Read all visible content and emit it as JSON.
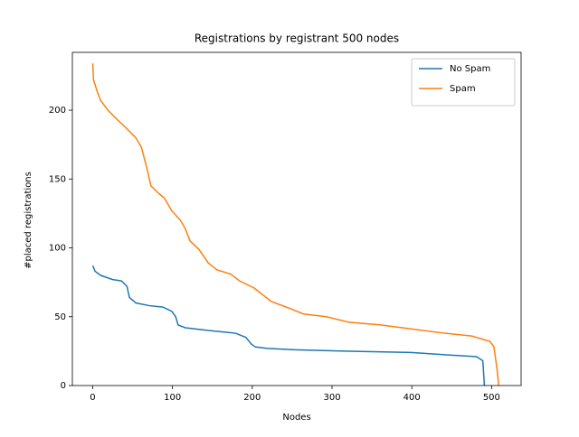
{
  "chart_data": {
    "type": "line",
    "title": "Registrations by registrant 500 nodes",
    "xlabel": "Nodes",
    "ylabel": "#placed registrations",
    "xlim": [
      -25.5,
      537
    ],
    "ylim": [
      0,
      242
    ],
    "xticks": [
      0,
      100,
      200,
      300,
      400,
      500
    ],
    "yticks": [
      0,
      50,
      100,
      150,
      200
    ],
    "legend": "upper right",
    "series": [
      {
        "name": "No Spam",
        "color": "#1f77b4",
        "x": [
          0,
          3,
          10,
          25,
          36,
          43,
          46,
          54,
          71,
          88,
          99,
          104,
          107,
          116,
          145,
          179,
          192,
          199,
          204,
          219,
          253,
          316,
          399,
          452,
          481,
          489,
          491
        ],
        "values": [
          87,
          83,
          80,
          77,
          76,
          72,
          64,
          60,
          58,
          57,
          54,
          50,
          44,
          42,
          40,
          38,
          35,
          30,
          28,
          27,
          26,
          25,
          24,
          22,
          21,
          18,
          0
        ]
      },
      {
        "name": "Spam",
        "color": "#ff7f0e",
        "x": [
          0,
          1,
          6,
          10,
          19,
          31,
          42,
          54,
          61,
          67,
          73,
          82,
          90,
          99,
          110,
          116,
          122,
          133,
          145,
          156,
          173,
          184,
          202,
          224,
          247,
          264,
          293,
          321,
          361,
          401,
          441,
          475,
          498,
          503,
          507,
          509
        ],
        "values": [
          234,
          222,
          213,
          207,
          200,
          193,
          187,
          180,
          173,
          160,
          145,
          140,
          136,
          127,
          120,
          114,
          105,
          99,
          89,
          84,
          81,
          76,
          71,
          61,
          56,
          52,
          50,
          46,
          44,
          41,
          38,
          36,
          32,
          28,
          11,
          0
        ]
      }
    ]
  }
}
